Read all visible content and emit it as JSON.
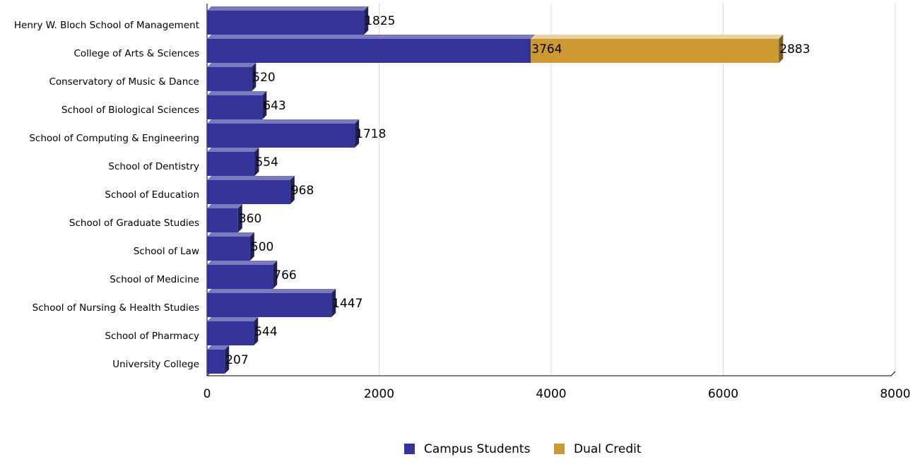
{
  "chart_data": {
    "type": "bar",
    "orientation": "horizontal",
    "stacked": true,
    "categories": [
      "Henry W. Bloch School of Management",
      "College of Arts & Sciences",
      "Conservatory of Music & Dance",
      "School of Biological Sciences",
      "School of Computing & Engineering",
      "School of Dentistry",
      "School of Education",
      "School of Graduate Studies",
      "School of Law",
      "School of Medicine",
      "School of Nursing & Health Studies",
      "School of Pharmacy",
      "University College"
    ],
    "series": [
      {
        "name": "Campus Students",
        "color": "#33339a",
        "values": [
          1825,
          3764,
          520,
          643,
          1718,
          554,
          968,
          360,
          500,
          766,
          1447,
          544,
          207
        ]
      },
      {
        "name": "Dual Credit",
        "color": "#cc9933",
        "values": [
          0,
          2883,
          0,
          0,
          0,
          0,
          0,
          0,
          0,
          0,
          0,
          0,
          0
        ]
      }
    ],
    "xlim": [
      0,
      8000
    ],
    "xticks": [
      0,
      2000,
      4000,
      6000,
      8000
    ],
    "grid": true,
    "legend_position": "bottom"
  }
}
